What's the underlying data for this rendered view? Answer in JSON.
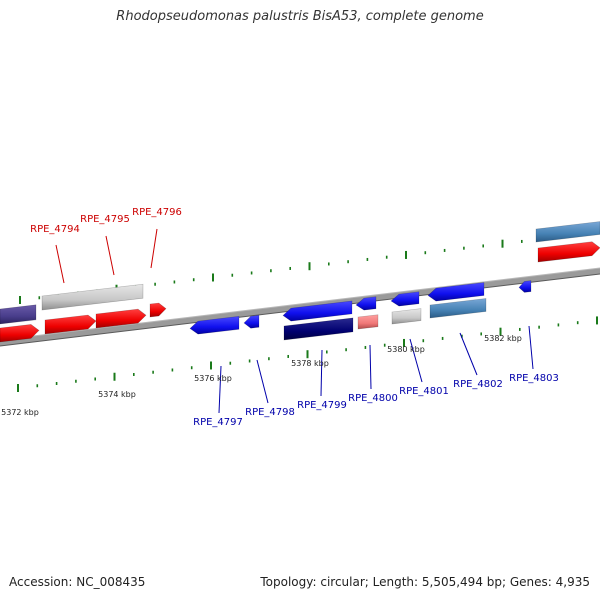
{
  "title": "Rhodopseudomonas palustris BisA53, complete genome",
  "footer": {
    "accession": "Accession: NC_008435",
    "summary": "Topology: circular; Length: 5,505,494 bp; Genes: 4,935"
  },
  "colors": {
    "background": "#ffffff",
    "backbone": "#8a8a8a",
    "tick": "#1a7a1a",
    "forward_label": "#cc0000",
    "reverse_label": "#0000aa"
  },
  "scale_labels": [
    "5372 kbp",
    "5374 kbp",
    "5376 kbp",
    "5378 kbp",
    "5380 kbp",
    "5382 kbp"
  ],
  "gene_labels": {
    "forward": [
      "RPE_4794",
      "RPE_4795",
      "RPE_4796"
    ],
    "reverse": [
      "RPE_4797",
      "RPE_4798",
      "RPE_4799",
      "RPE_4800",
      "RPE_4801",
      "RPE_4802",
      "RPE_4803"
    ]
  }
}
